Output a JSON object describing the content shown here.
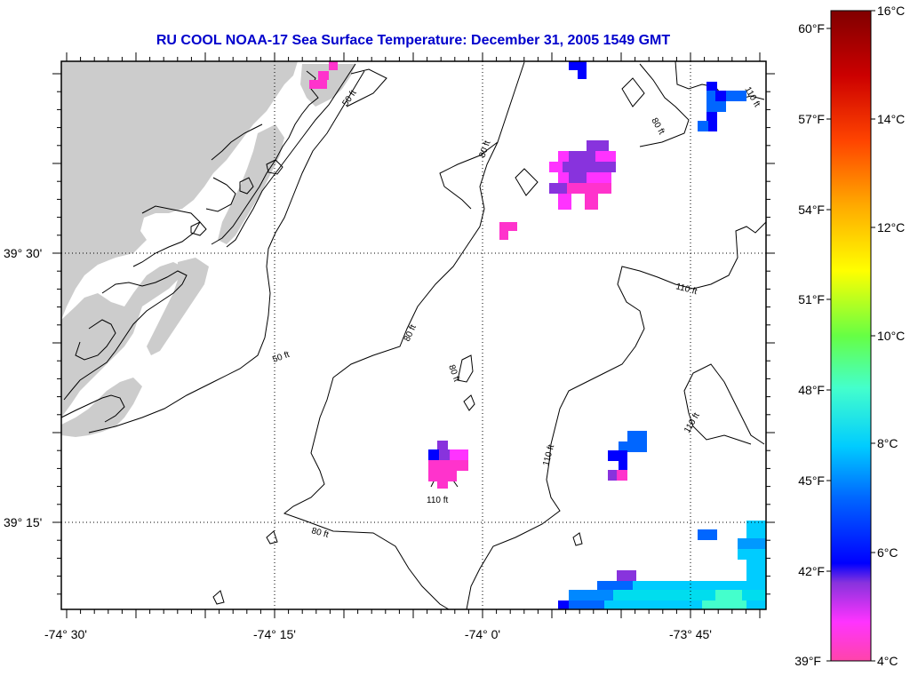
{
  "title": "RU COOL  NOAA-17  Sea Surface Temperature:  December 31, 2005 1549 GMT",
  "axes": {
    "lon_ticks": [
      "-74° 30'",
      "-74° 15'",
      "-74° 0'",
      "-73° 45'"
    ],
    "lat_ticks": [
      "39° 30'",
      "39° 15'"
    ]
  },
  "contour_labels": [
    "50 ft",
    "50 ft",
    "80 ft",
    "80 ft",
    "80 ft",
    "80 ft",
    "80 ft",
    "110 ft",
    "110 ft",
    "110 ft",
    "110 ft",
    "110 ft"
  ],
  "colorbar": {
    "fahrenheit": [
      "60°F",
      "57°F",
      "54°F",
      "51°F",
      "48°F",
      "45°F",
      "42°F",
      "39°F"
    ],
    "celsius": [
      "16°C",
      "14°C",
      "12°C",
      "10°C",
      "8°C",
      "6°C",
      "4°C"
    ],
    "colors": [
      "#ff44aa",
      "#ff33ff",
      "#8833dd",
      "#0000ff",
      "#0066ff",
      "#00ccff",
      "#44ffcc",
      "#66ff44",
      "#ffff00",
      "#ffaa00",
      "#ff4400",
      "#cc0000",
      "#800000"
    ]
  }
}
